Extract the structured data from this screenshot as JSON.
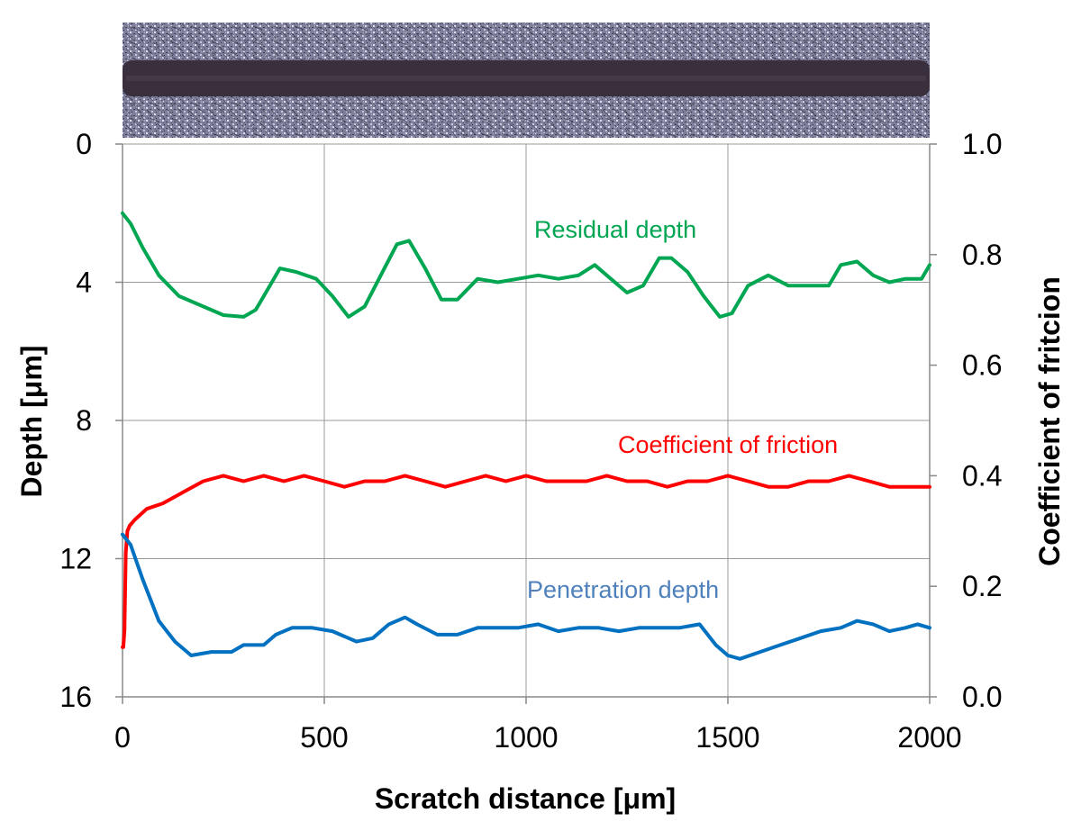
{
  "chart_data": {
    "type": "line",
    "xlabel": "Scratch distance [μm]",
    "ylabel_left": "Depth [μm]",
    "ylabel_right": "Coefficient of fritcion",
    "xlim": [
      0,
      2000
    ],
    "ylim_left": [
      16,
      0
    ],
    "ylim_right": [
      0,
      1.0
    ],
    "left_axis_inverted": true,
    "x_ticks": [
      "0",
      "500",
      "1000",
      "1500",
      "2000"
    ],
    "y_left_ticks": [
      "0",
      "4",
      "8",
      "12",
      "16"
    ],
    "y_right_ticks": [
      "1.0",
      "0.8",
      "0.6",
      "0.4",
      "0.2",
      "0.0"
    ],
    "grid": true,
    "legend": "inline labels",
    "image_strip": "optical micrograph of scratch track above plot",
    "series": [
      {
        "name": "Residual depth",
        "axis": "left",
        "color": "#00a651",
        "x": [
          0,
          20,
          50,
          90,
          140,
          200,
          250,
          300,
          330,
          360,
          390,
          430,
          480,
          520,
          560,
          600,
          640,
          680,
          710,
          750,
          790,
          830,
          880,
          930,
          980,
          1030,
          1080,
          1130,
          1170,
          1210,
          1250,
          1290,
          1330,
          1360,
          1400,
          1440,
          1480,
          1510,
          1550,
          1600,
          1650,
          1700,
          1750,
          1780,
          1820,
          1860,
          1900,
          1940,
          1980,
          2000
        ],
        "y": [
          2.0,
          2.3,
          3.0,
          3.8,
          4.4,
          4.7,
          4.95,
          5.0,
          4.8,
          4.2,
          3.6,
          3.7,
          3.9,
          4.4,
          5.0,
          4.7,
          3.8,
          2.9,
          2.8,
          3.6,
          4.5,
          4.5,
          3.9,
          4.0,
          3.9,
          3.8,
          3.9,
          3.8,
          3.5,
          3.9,
          4.3,
          4.1,
          3.3,
          3.3,
          3.7,
          4.4,
          5.0,
          4.9,
          4.1,
          3.8,
          4.1,
          4.1,
          4.1,
          3.5,
          3.4,
          3.8,
          4.0,
          3.9,
          3.9,
          3.5
        ]
      },
      {
        "name": "Coefficient of friction",
        "axis": "right",
        "color": "#ff0000",
        "x": [
          0,
          2,
          5,
          8,
          12,
          18,
          30,
          60,
          100,
          150,
          200,
          250,
          300,
          350,
          400,
          450,
          500,
          550,
          600,
          650,
          700,
          750,
          800,
          850,
          900,
          950,
          1000,
          1050,
          1100,
          1150,
          1200,
          1250,
          1300,
          1350,
          1400,
          1450,
          1500,
          1550,
          1600,
          1650,
          1700,
          1750,
          1800,
          1850,
          1900,
          1950,
          2000
        ],
        "y": [
          0.09,
          0.09,
          0.12,
          0.26,
          0.3,
          0.31,
          0.32,
          0.34,
          0.35,
          0.37,
          0.39,
          0.4,
          0.39,
          0.4,
          0.39,
          0.4,
          0.39,
          0.38,
          0.39,
          0.39,
          0.4,
          0.39,
          0.38,
          0.39,
          0.4,
          0.39,
          0.4,
          0.39,
          0.39,
          0.39,
          0.4,
          0.39,
          0.39,
          0.38,
          0.39,
          0.39,
          0.4,
          0.39,
          0.38,
          0.38,
          0.39,
          0.39,
          0.4,
          0.39,
          0.38,
          0.38,
          0.38
        ]
      },
      {
        "name": "Penetration depth",
        "axis": "left",
        "color": "#0070c0",
        "x": [
          0,
          20,
          50,
          90,
          130,
          170,
          220,
          270,
          300,
          350,
          380,
          420,
          470,
          520,
          580,
          620,
          660,
          700,
          730,
          780,
          830,
          880,
          930,
          980,
          1030,
          1080,
          1130,
          1180,
          1230,
          1280,
          1330,
          1380,
          1430,
          1470,
          1500,
          1530,
          1580,
          1630,
          1680,
          1730,
          1780,
          1820,
          1860,
          1900,
          1940,
          1970,
          2000
        ],
        "y": [
          11.3,
          11.6,
          12.6,
          13.8,
          14.4,
          14.8,
          14.7,
          14.7,
          14.5,
          14.5,
          14.2,
          14.0,
          14.0,
          14.1,
          14.4,
          14.3,
          13.9,
          13.7,
          13.9,
          14.2,
          14.2,
          14.0,
          14.0,
          14.0,
          13.9,
          14.1,
          14.0,
          14.0,
          14.1,
          14.0,
          14.0,
          14.0,
          13.9,
          14.5,
          14.8,
          14.9,
          14.7,
          14.5,
          14.3,
          14.1,
          14.0,
          13.8,
          13.9,
          14.1,
          14.0,
          13.9,
          14.0
        ]
      }
    ]
  }
}
